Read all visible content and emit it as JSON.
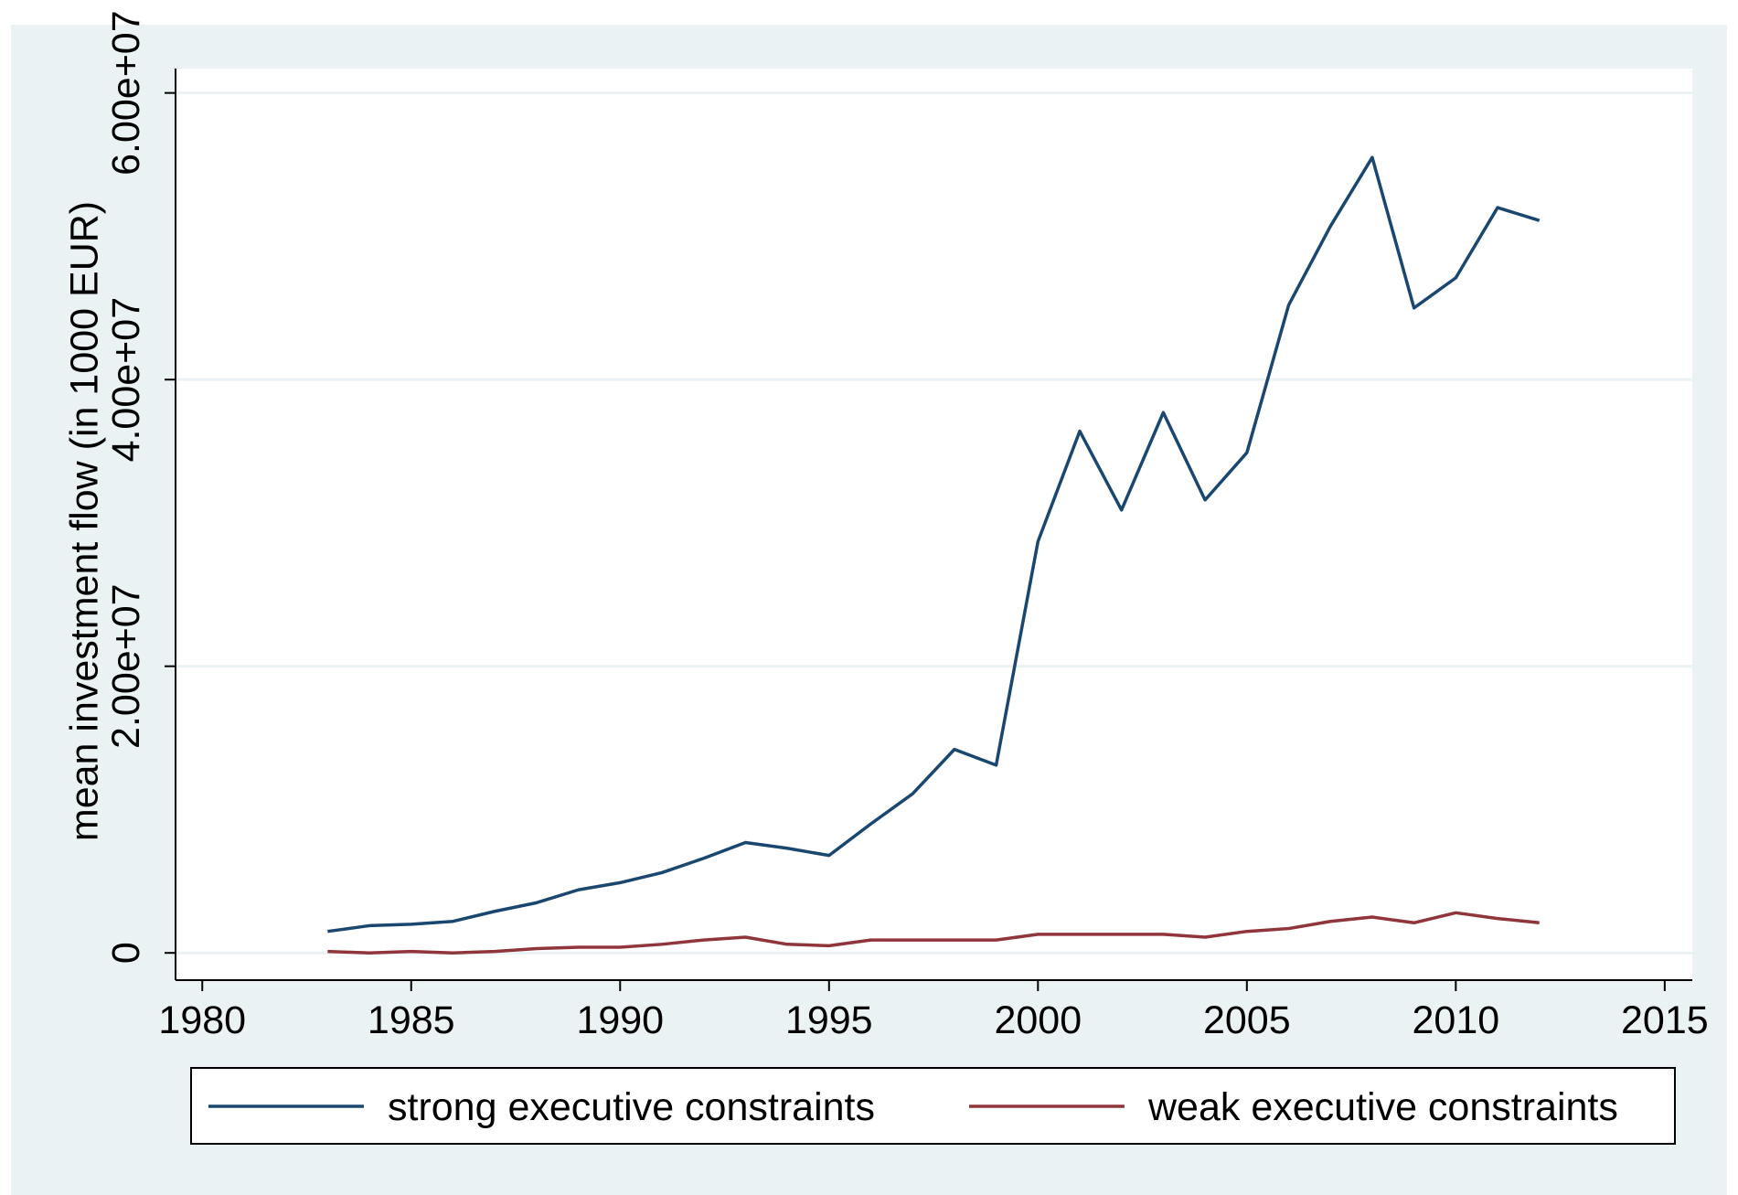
{
  "chart_data": {
    "type": "line",
    "y_label": "mean investment flow (in 1000 EUR)",
    "x": [
      1983,
      1984,
      1985,
      1986,
      1987,
      1988,
      1989,
      1990,
      1991,
      1992,
      1993,
      1994,
      1995,
      1996,
      1997,
      1998,
      1999,
      2000,
      2001,
      2002,
      2003,
      2004,
      2005,
      2006,
      2007,
      2008,
      2009,
      2010,
      2011,
      2012
    ],
    "series": [
      {
        "name": "strong executive constraints",
        "color": "#1a476f",
        "values": [
          1500000,
          1900000,
          2000000,
          2200000,
          2900000,
          3500000,
          4400000,
          4900000,
          5600000,
          6600000,
          7700000,
          7300000,
          6800000,
          9000000,
          11100000,
          14200000,
          13100000,
          28700000,
          36400000,
          30900000,
          37700000,
          31600000,
          34900000,
          45200000,
          50700000,
          55500000,
          45000000,
          47100000,
          52000000,
          51100000
        ]
      },
      {
        "name": "weak executive constraints",
        "color": "#90353b",
        "values": [
          100000,
          0,
          100000,
          0,
          100000,
          300000,
          400000,
          400000,
          600000,
          900000,
          1100000,
          600000,
          500000,
          900000,
          900000,
          900000,
          900000,
          1300000,
          1300000,
          1300000,
          1300000,
          1100000,
          1500000,
          1700000,
          2200000,
          2500000,
          2100000,
          2800000,
          2400000,
          2100000
        ]
      }
    ],
    "xlim": [
      1979.36,
      2015.66
    ],
    "xticks": [
      1980,
      1985,
      1990,
      1995,
      2000,
      2005,
      2010,
      2015
    ],
    "ylim": [
      -1900000,
      61700000
    ],
    "yticks": [
      0,
      {
        "value": 20000000,
        "label": "2.00e+07"
      },
      {
        "value": 40000000,
        "label": "4.00e+07"
      },
      {
        "value": 60000000,
        "label": "6.00e+07"
      }
    ],
    "grid": true,
    "legend": "bottom"
  }
}
